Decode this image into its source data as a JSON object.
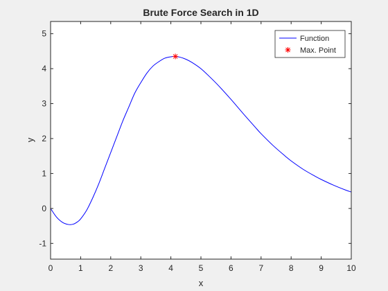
{
  "chart_data": {
    "type": "line",
    "title": "Brute Force Search in 1D",
    "xlabel": "x",
    "ylabel": "y",
    "xlim": [
      0,
      10
    ],
    "ylim": [
      -1.45,
      5.35
    ],
    "xticks": [
      "0",
      "1",
      "2",
      "3",
      "4",
      "5",
      "6",
      "7",
      "8",
      "9",
      "10"
    ],
    "yticks": [
      "-1",
      "0",
      "1",
      "2",
      "3",
      "4",
      "5"
    ],
    "grid": false,
    "legend_position": "top-right",
    "series": [
      {
        "name": "Function",
        "kind": "line",
        "color": "#0000ff",
        "x": [
          0,
          0.2,
          0.4,
          0.6,
          0.75,
          0.9,
          1.0,
          1.2,
          1.4,
          1.6,
          1.8,
          2.0,
          2.2,
          2.4,
          2.6,
          2.8,
          3.0,
          3.2,
          3.4,
          3.6,
          3.8,
          4.0,
          4.15,
          4.3,
          4.5,
          4.7,
          5.0,
          5.3,
          5.6,
          6.0,
          6.4,
          6.8,
          7.0,
          7.4,
          7.8,
          8.0,
          8.4,
          8.8,
          9.0,
          9.4,
          9.8,
          10.0
        ],
        "y": [
          0.0,
          -0.25,
          -0.4,
          -0.46,
          -0.45,
          -0.38,
          -0.3,
          -0.05,
          0.3,
          0.7,
          1.15,
          1.6,
          2.05,
          2.5,
          2.9,
          3.3,
          3.6,
          3.87,
          4.07,
          4.2,
          4.3,
          4.34,
          4.35,
          4.33,
          4.27,
          4.18,
          4.0,
          3.76,
          3.5,
          3.12,
          2.72,
          2.33,
          2.14,
          1.8,
          1.5,
          1.36,
          1.12,
          0.92,
          0.83,
          0.67,
          0.53,
          0.47
        ]
      },
      {
        "name": "Max. Point",
        "kind": "marker",
        "marker": "*",
        "color": "#ff0000",
        "x": [
          4.15
        ],
        "y": [
          4.35
        ]
      }
    ]
  }
}
